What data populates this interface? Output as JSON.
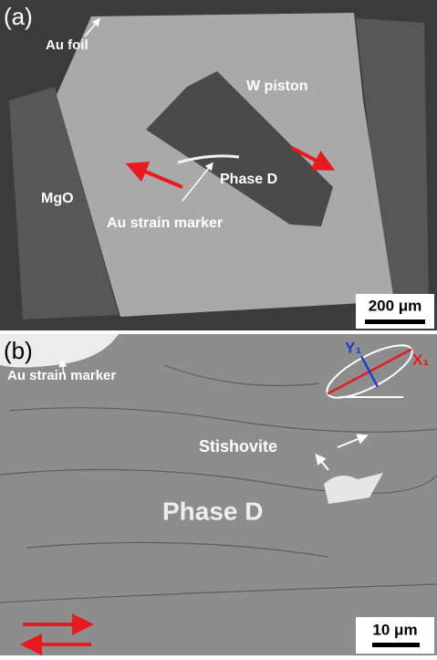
{
  "panels": [
    {
      "label": "(a)",
      "annotations": [
        "Au foil",
        "W piston",
        "Phase D",
        "MgO",
        "Au strain marker"
      ],
      "scale_bar": "200 μm"
    },
    {
      "label": "(b)",
      "annotations": [
        "Au strain marker",
        "Stishovite",
        "Phase D"
      ],
      "axes": [
        "Y₁",
        "X₁"
      ],
      "scale_bar": "10 μm"
    }
  ]
}
